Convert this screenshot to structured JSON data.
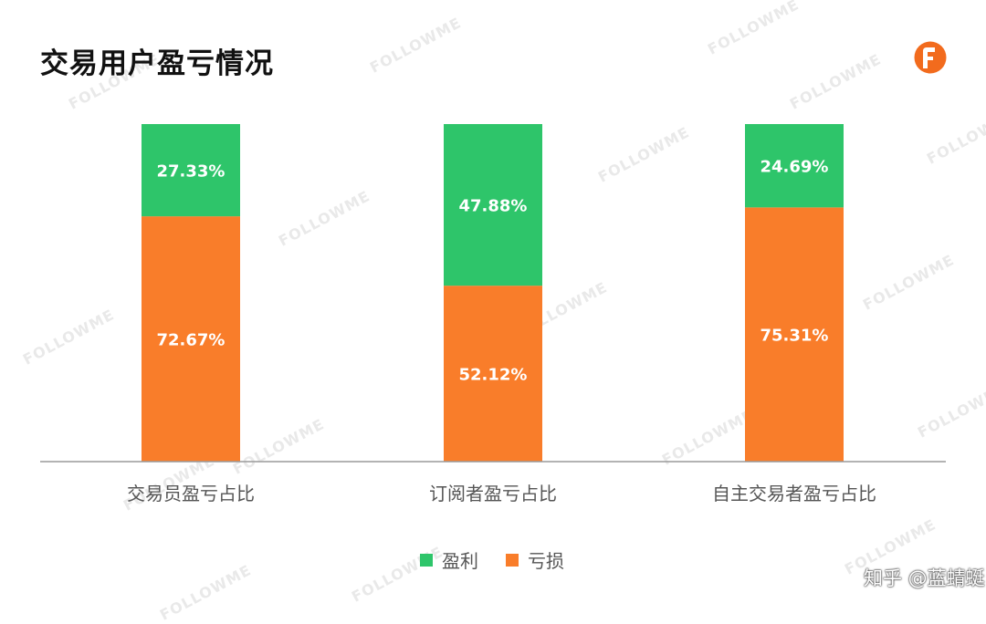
{
  "page": {
    "title": "交易用户盈亏情况",
    "credit": "知乎 @蓝蜻蜓",
    "watermark_text": "FOLLOWME"
  },
  "colors": {
    "profit": "#2ec56a",
    "loss": "#f97d2a",
    "brand": "#f26b1d",
    "axis": "#9a9a9a",
    "category_text": "#555555"
  },
  "icons": {
    "logo": "followme-logo-icon"
  },
  "chart_data": {
    "type": "bar",
    "stacked": true,
    "percent_stacked": true,
    "categories": [
      "交易员盈亏占比",
      "订阅者盈亏占比",
      "自主交易者盈亏占比"
    ],
    "series": [
      {
        "name": "亏损",
        "color": "#f97d2a",
        "values": [
          72.67,
          52.12,
          75.31
        ],
        "labels": [
          "72.67%",
          "52.12%",
          "75.31%"
        ]
      },
      {
        "name": "盈利",
        "color": "#2ec56a",
        "values": [
          27.33,
          47.88,
          24.69
        ],
        "labels": [
          "27.33%",
          "47.88%",
          "24.69%"
        ]
      }
    ],
    "legend_order": [
      "盈利",
      "亏损"
    ],
    "ylim": [
      0,
      100
    ],
    "legend_position": "bottom-center",
    "grid": false
  }
}
